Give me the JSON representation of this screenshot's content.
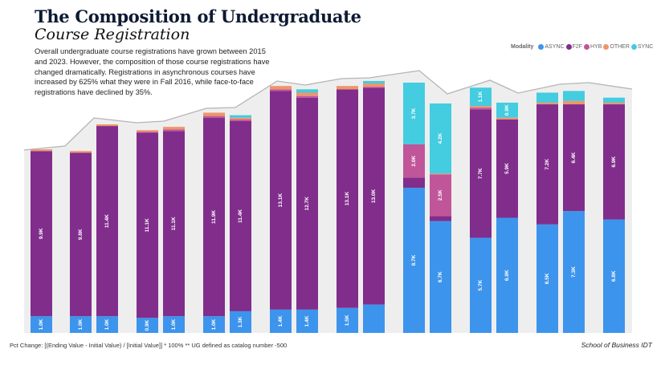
{
  "title": "The Composition of Undergraduate",
  "subtitle": "Course Registration",
  "description": "Overall undergraduate course registrations have grown between 2015 and 2023. However, the composition of those course registrations have changed dramatically. Registrations in asynchronous courses have increased by 625% what they were in Fall 2016, while face-to-face registrations have declined by 35%.",
  "footnote": "Pct Change: [(Ending Value - Initial Value) / [Initial Value]] * 100% ** UG defined as catalog number -500",
  "credit": "School of Business IDT",
  "chart_data": {
    "type": "bar",
    "stacked": true,
    "title": "The Composition of Undergraduate Course Registration",
    "xlabel": "",
    "ylabel": "",
    "unit": "thousands of registrations",
    "legend": {
      "title": "Modality",
      "placement": "top-right"
    },
    "series_names": [
      "ASYNC",
      "F2F",
      "HYB",
      "OTHER",
      "SYNC"
    ],
    "colors": {
      "ASYNC": "#3d94ec",
      "F2F": "#812d8c",
      "HYB": "#c05699",
      "OTHER": "#f0956a",
      "SYNC": "#44cce0"
    },
    "bars": [
      {
        "values": [
          1.0,
          9.9,
          0,
          0.1,
          0
        ],
        "labels": [
          "1.0K",
          "9.9K",
          "",
          "",
          ""
        ]
      },
      {
        "values": [
          1.0,
          9.8,
          0,
          0.1,
          0
        ],
        "labels": [
          "1.0K",
          "9.8K",
          "",
          "",
          ""
        ]
      },
      {
        "values": [
          1.0,
          11.4,
          0,
          0.1,
          0
        ],
        "labels": [
          "1.0K",
          "11.4K",
          "",
          "",
          ""
        ]
      },
      {
        "values": [
          0.9,
          11.1,
          0.05,
          0.1,
          0
        ],
        "labels": [
          "0.9K",
          "11.1K",
          "",
          "",
          ""
        ]
      },
      {
        "values": [
          1.0,
          11.1,
          0.1,
          0.15,
          0
        ],
        "labels": [
          "1.0K",
          "11.1K",
          "",
          "",
          ""
        ]
      },
      {
        "values": [
          1.0,
          11.9,
          0.1,
          0.2,
          0
        ],
        "labels": [
          "1.0K",
          "11.9K",
          "",
          "",
          ""
        ]
      },
      {
        "values": [
          1.3,
          11.4,
          0.1,
          0.1,
          0.15
        ],
        "labels": [
          "1.3K",
          "11.4K",
          "",
          "",
          ""
        ]
      },
      {
        "values": [
          1.4,
          13.1,
          0.1,
          0.2,
          0
        ],
        "labels": [
          "1.4K",
          "13.1K",
          "",
          "",
          ""
        ]
      },
      {
        "values": [
          1.4,
          12.7,
          0.1,
          0.2,
          0.2
        ],
        "labels": [
          "1.4K",
          "12.7K",
          "",
          "",
          ""
        ]
      },
      {
        "values": [
          1.5,
          13.1,
          0,
          0.2,
          0
        ],
        "labels": [
          "1.5K",
          "13.1K",
          "",
          "",
          ""
        ]
      },
      {
        "values": [
          1.7,
          13.0,
          0.05,
          0.2,
          0.15
        ],
        "labels": [
          "",
          "13.0K",
          "",
          "",
          ""
        ]
      },
      {
        "values": [
          8.7,
          0.6,
          2.0,
          0,
          3.7
        ],
        "labels": [
          "8.7K",
          "",
          "2.0K",
          "",
          "3.7K"
        ]
      },
      {
        "values": [
          6.7,
          0.3,
          2.5,
          0.05,
          4.2
        ],
        "labels": [
          "6.7K",
          "",
          "2.5K",
          "",
          "4.2K"
        ]
      },
      {
        "values": [
          5.7,
          7.7,
          0.1,
          0.1,
          1.1
        ],
        "labels": [
          "5.7K",
          "7.7K",
          "",
          "",
          "1.1K"
        ]
      },
      {
        "values": [
          6.9,
          5.9,
          0,
          0.1,
          0.9
        ],
        "labels": [
          "6.9K",
          "5.9K",
          "",
          "",
          "0.9K"
        ]
      },
      {
        "values": [
          6.5,
          7.2,
          0,
          0.1,
          0.6
        ],
        "labels": [
          "6.5K",
          "7.2K",
          "",
          "",
          ""
        ]
      },
      {
        "values": [
          7.3,
          6.4,
          0,
          0.2,
          0.6
        ],
        "labels": [
          "7.3K",
          "6.4K",
          "",
          "",
          ""
        ]
      },
      {
        "values": [
          6.8,
          6.9,
          0,
          0.1,
          0.3
        ],
        "labels": [
          "6.8K",
          "6.9K",
          "",
          "",
          ""
        ]
      }
    ]
  }
}
